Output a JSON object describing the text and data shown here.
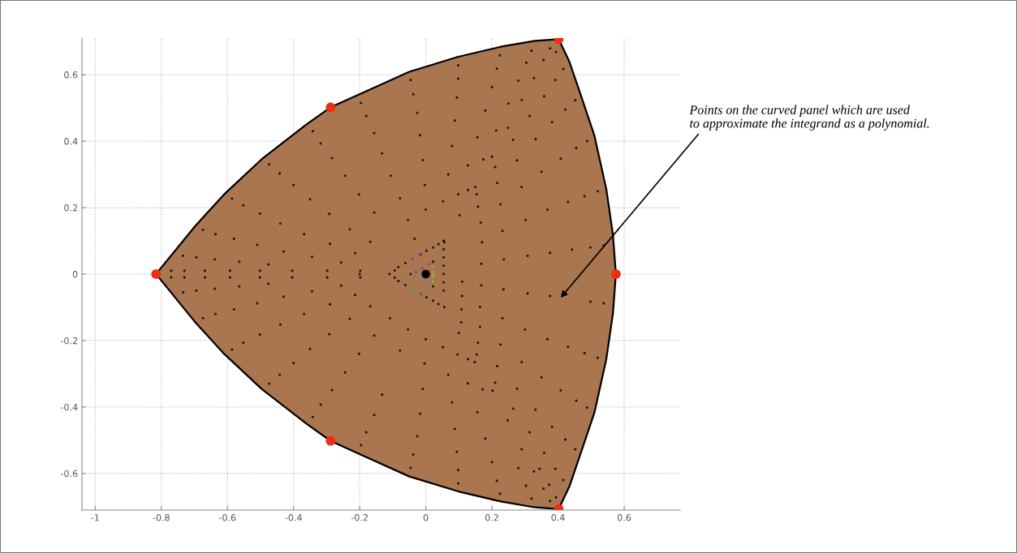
{
  "chart_data": {
    "type": "scatter",
    "xlim": [
      -1.04,
      0.77
    ],
    "ylim": [
      -0.71,
      0.71
    ],
    "xticks": [
      -1,
      -0.8,
      -0.6,
      -0.4,
      -0.2,
      0,
      0.2,
      0.4,
      0.6
    ],
    "yticks": [
      -0.6,
      -0.4,
      -0.2,
      0,
      0.2,
      0.4,
      0.6
    ],
    "grid": true,
    "marker": "circle",
    "annotations": [
      "Points on the curved panel which are used\nto approximate the integrand as a polynomial."
    ],
    "series": [
      {
        "color": "#1e1410",
        "x": [
          -0.734,
          -0.694,
          -0.638,
          -0.564,
          -0.476,
          -0.43,
          -0.51,
          -0.58,
          -0.636,
          -0.674,
          -0.552,
          -0.586,
          -0.502,
          -0.44,
          -0.368,
          -0.29,
          -0.344,
          -0.256,
          -0.214,
          -0.168,
          -0.23,
          -0.292,
          -0.35,
          -0.4,
          -0.442,
          -0.474,
          -0.342,
          -0.318,
          -0.284,
          -0.244,
          -0.202,
          -0.156,
          -0.156,
          -0.132,
          -0.18,
          -0.196,
          -0.734,
          -0.694,
          -0.638,
          -0.564,
          -0.476,
          -0.43,
          -0.51,
          -0.58,
          -0.636,
          -0.674,
          -0.552,
          -0.586,
          -0.502,
          -0.44,
          -0.368,
          -0.29,
          -0.344,
          -0.256,
          -0.214,
          -0.168,
          -0.23,
          -0.292,
          -0.35,
          -0.4,
          -0.442,
          -0.474,
          -0.342,
          -0.318,
          -0.284,
          -0.244,
          -0.202,
          -0.156,
          -0.156,
          -0.132,
          -0.18,
          -0.196,
          -0.77,
          -0.73,
          -0.668,
          -0.592,
          -0.502,
          -0.404,
          -0.298,
          -0.198,
          -0.77,
          -0.73,
          -0.668,
          -0.592,
          -0.502,
          -0.404,
          -0.298,
          -0.198,
          -0.038,
          -0.046,
          -0.026,
          -0.017,
          -0.009,
          -0.003,
          0.0,
          -0.106,
          -0.078,
          -0.054,
          -0.034,
          0.098,
          0.098,
          0.094,
          0.088,
          0.079,
          0.068,
          0.052,
          0.098,
          0.128,
          0.15,
          0.154,
          0.158,
          0.166,
          0.17,
          0.168,
          0.127,
          0.156,
          0.18,
          0.2,
          0.215,
          0.224,
          0.174,
          0.2,
          0.21,
          0.216,
          0.226,
          0.232,
          0.236,
          0.213,
          0.248,
          0.264,
          0.276,
          0.29,
          0.302,
          0.308,
          0.25,
          0.29,
          0.314,
          0.332,
          0.35,
          0.368,
          0.376,
          0.28,
          0.304,
          0.32,
          0.327,
          0.356,
          0.376,
          0.394,
          0.392,
          0.416,
          0.358,
          0.382,
          0.422,
          0.452,
          0.488,
          0.455,
          0.408,
          0.48,
          0.43,
          0.442,
          0.498,
          0.538,
          0.52,
          0.056,
          0.102,
          0.11,
          0.11,
          0.108,
          0.107,
          0.1,
          0.168,
          0.164,
          0.164,
          0.158,
          0.154,
          0.148,
          0.128,
          0.096,
          0.052,
          0.0,
          -0.054,
          -0.108,
          -0.078,
          -0.004,
          0.068,
          0.127,
          0.172,
          0.202,
          0.21,
          0.216,
          0.226,
          0.232,
          0.235,
          -0.009,
          -0.017,
          -0.026,
          -0.038,
          -0.046,
          0.079,
          0.088,
          0.094,
          0.098,
          0.098,
          0.156,
          0.18,
          0.2,
          0.215,
          0.224,
          0.264,
          0.248,
          0.276,
          0.3,
          0.308,
          0.29,
          0.35,
          0.368,
          0.376,
          0.332,
          0.314,
          0.29,
          0.28,
          0.303,
          0.327,
          0.344,
          0.356,
          0.32,
          0.373,
          0.376,
          0.394,
          0.392,
          0.416,
          0.358,
          0.382,
          0.408,
          0.422,
          0.452,
          0.455,
          0.488,
          0.43,
          0.48,
          0.52,
          0.498,
          0.538,
          0.056,
          -0.11,
          -0.094,
          -0.083,
          -0.062,
          -0.016,
          0.002,
          0.022,
          0.038,
          -0.094,
          -0.083,
          -0.062,
          -0.016,
          0.002,
          0.022,
          0.038,
          0.054,
          0.054,
          0.054,
          0.054,
          0.054,
          0.054,
          0.054,
          -0.2,
          -0.046,
          0.022,
          0.022
        ],
        "values": [
          0.055,
          0.05,
          0.044,
          0.037,
          0.029,
          0.068,
          0.088,
          0.106,
          0.12,
          0.133,
          0.207,
          0.227,
          0.182,
          0.152,
          0.12,
          0.091,
          0.052,
          0.035,
          0.063,
          0.097,
          0.135,
          0.181,
          0.225,
          0.268,
          0.303,
          0.33,
          0.43,
          0.393,
          0.349,
          0.296,
          0.24,
          0.185,
          0.424,
          0.363,
          0.476,
          0.515,
          -0.055,
          -0.05,
          -0.044,
          -0.037,
          -0.029,
          -0.068,
          -0.088,
          -0.106,
          -0.12,
          -0.133,
          -0.207,
          -0.227,
          -0.182,
          -0.152,
          -0.12,
          -0.091,
          -0.052,
          -0.035,
          -0.063,
          -0.097,
          -0.135,
          -0.181,
          -0.225,
          -0.268,
          -0.303,
          -0.33,
          -0.43,
          -0.393,
          -0.349,
          -0.296,
          -0.24,
          -0.185,
          -0.424,
          -0.363,
          -0.476,
          -0.515,
          0.01,
          0.01,
          0.01,
          0.01,
          0.01,
          0.01,
          0.01,
          0.01,
          -0.01,
          -0.01,
          -0.01,
          -0.01,
          -0.01,
          -0.01,
          -0.01,
          -0.01,
          0.541,
          0.584,
          0.485,
          0.418,
          0.343,
          0.268,
          0.194,
          0.296,
          0.228,
          0.163,
          0.106,
          0.628,
          0.588,
          0.531,
          0.462,
          0.385,
          0.3,
          0.219,
          0.24,
          0.253,
          0.262,
          0.24,
          0.203,
          0.155,
          0.096,
          0.031,
          0.327,
          0.412,
          0.492,
          0.563,
          0.618,
          0.658,
          0.345,
          0.353,
          0.322,
          0.274,
          0.21,
          0.13,
          0.044,
          0.432,
          0.44,
          0.404,
          0.342,
          0.262,
          0.163,
          0.055,
          0.513,
          0.524,
          0.476,
          0.406,
          0.308,
          0.194,
          0.064,
          0.582,
          0.636,
          0.672,
          0.59,
          0.644,
          0.679,
          0.668,
          0.584,
          0.617,
          0.535,
          0.457,
          0.495,
          0.523,
          0.4,
          0.38,
          0.347,
          0.234,
          0.217,
          0.074,
          0.08,
          0.086,
          0.249,
          0.096,
          0.177,
          -0.023,
          -0.066,
          -0.106,
          -0.145,
          -0.177,
          -0.034,
          -0.099,
          -0.159,
          -0.207,
          -0.242,
          -0.265,
          -0.256,
          -0.242,
          -0.22,
          -0.196,
          -0.167,
          -0.133,
          -0.23,
          -0.269,
          -0.303,
          -0.329,
          -0.347,
          -0.351,
          -0.327,
          -0.277,
          -0.212,
          -0.133,
          -0.046,
          -0.346,
          -0.42,
          -0.488,
          -0.543,
          -0.583,
          -0.386,
          -0.466,
          -0.535,
          -0.59,
          -0.63,
          -0.416,
          -0.495,
          -0.566,
          -0.622,
          -0.661,
          -0.405,
          -0.44,
          -0.345,
          -0.167,
          -0.058,
          -0.265,
          -0.311,
          -0.196,
          -0.066,
          -0.408,
          -0.476,
          -0.527,
          -0.584,
          -0.637,
          -0.594,
          -0.586,
          -0.646,
          -0.676,
          -0.634,
          -0.683,
          -0.672,
          -0.586,
          -0.62,
          -0.538,
          -0.46,
          -0.35,
          -0.498,
          -0.527,
          -0.381,
          -0.402,
          -0.219,
          -0.238,
          -0.252,
          -0.083,
          -0.088,
          -0.099,
          0.0,
          0.011,
          0.021,
          0.033,
          0.059,
          0.07,
          0.08,
          0.09,
          -0.011,
          -0.021,
          -0.033,
          -0.059,
          -0.07,
          -0.08,
          -0.09,
          0.1,
          0.075,
          0.05,
          0.025,
          0.0,
          -0.025,
          -0.05,
          0.0,
          0.0,
          0.037,
          -0.037
        ]
      },
      {
        "color": "#9b2fae",
        "x": [
          -0.04,
          -0.018,
          -0.03,
          -0.01,
          0.01
        ],
        "values": [
          0.045,
          0.059,
          0.006,
          0.017,
          0.03
        ]
      },
      {
        "color": "#2a9db0",
        "x": [
          -0.04,
          -0.018,
          -0.03,
          -0.01,
          0.01
        ],
        "values": [
          -0.045,
          -0.059,
          -0.006,
          -0.017,
          -0.03
        ]
      },
      {
        "color": "#8fae4a",
        "x": [
          0.022,
          0.022,
          0.022,
          0.022,
          0.022
        ],
        "values": [
          0.022,
          0.008,
          -0.008,
          -0.022,
          0.0
        ]
      },
      {
        "color": "#000000",
        "x": [
          0.0
        ],
        "values": [
          0.0
        ]
      },
      {
        "color": "#ee2d12",
        "x": [
          -0.816,
          -0.288,
          -0.288,
          0.402,
          0.402,
          0.575
        ],
        "values": [
          0,
          0.502,
          -0.502,
          0.707,
          -0.707,
          0
        ]
      },
      {
        "type": "area",
        "marker": "none",
        "color": "#a97650",
        "x": [
          -0.816,
          -0.699,
          -0.61,
          -0.496,
          -0.36,
          -0.288,
          -0.206,
          -0.05,
          0.098,
          0.226,
          0.33,
          0.402,
          0.434,
          0.466,
          0.51,
          0.546,
          0.566,
          0.575
        ],
        "values": [
          0,
          0.143,
          0.24,
          0.346,
          0.451,
          0.502,
          0.539,
          0.609,
          0.654,
          0.684,
          0.702,
          0.707,
          0.64,
          0.547,
          0.417,
          0.256,
          0.119,
          0
        ]
      },
      {
        "type": "area",
        "marker": "none",
        "color": "#a97650",
        "x": [
          -0.816,
          -0.699,
          -0.61,
          -0.496,
          -0.36,
          -0.288,
          -0.206,
          -0.05,
          0.098,
          0.226,
          0.33,
          0.402,
          0.434,
          0.466,
          0.51,
          0.546,
          0.566,
          0.575
        ],
        "values": [
          0,
          -0.143,
          -0.24,
          -0.346,
          -0.451,
          -0.502,
          -0.539,
          -0.609,
          -0.654,
          -0.684,
          -0.702,
          -0.707,
          -0.64,
          -0.547,
          -0.417,
          -0.256,
          -0.119,
          0
        ]
      }
    ]
  }
}
